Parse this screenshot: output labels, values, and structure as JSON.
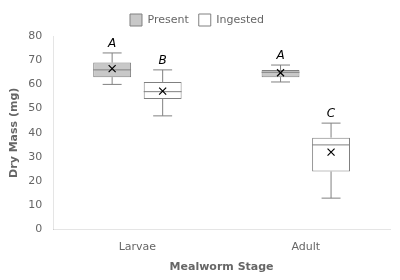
{
  "chart_data": {
    "type": "box",
    "categories": [
      "Larvae",
      "Adult"
    ],
    "xlabel": "Mealworm Stage",
    "ylabel": "Dry Mass (mg)",
    "series": [
      {
        "name": "Present",
        "color": "#c8c8c8",
        "q1": [
          63,
          63
        ],
        "median": [
          66,
          65
        ],
        "q3": [
          69,
          66
        ],
        "whisker_low": [
          60,
          61
        ],
        "whisker_high": [
          73,
          68
        ],
        "mean": [
          66.5,
          64.8
        ],
        "labels": [
          "A",
          "A"
        ]
      },
      {
        "name": "Ingested",
        "color": "#ffffff",
        "q1": [
          54,
          24
        ],
        "median": [
          57,
          35
        ],
        "q3": [
          61,
          38
        ],
        "whisker_low": [
          47,
          13
        ],
        "whisker_high": [
          66,
          44
        ],
        "mean": [
          57.2,
          32.0
        ],
        "labels": [
          "B",
          "C"
        ]
      }
    ],
    "ylim": [
      0,
      80
    ],
    "yticks": [
      0,
      10,
      20,
      30,
      40,
      50,
      60,
      70,
      80
    ],
    "grid": false,
    "legend": "upper center",
    "marker": "x"
  }
}
